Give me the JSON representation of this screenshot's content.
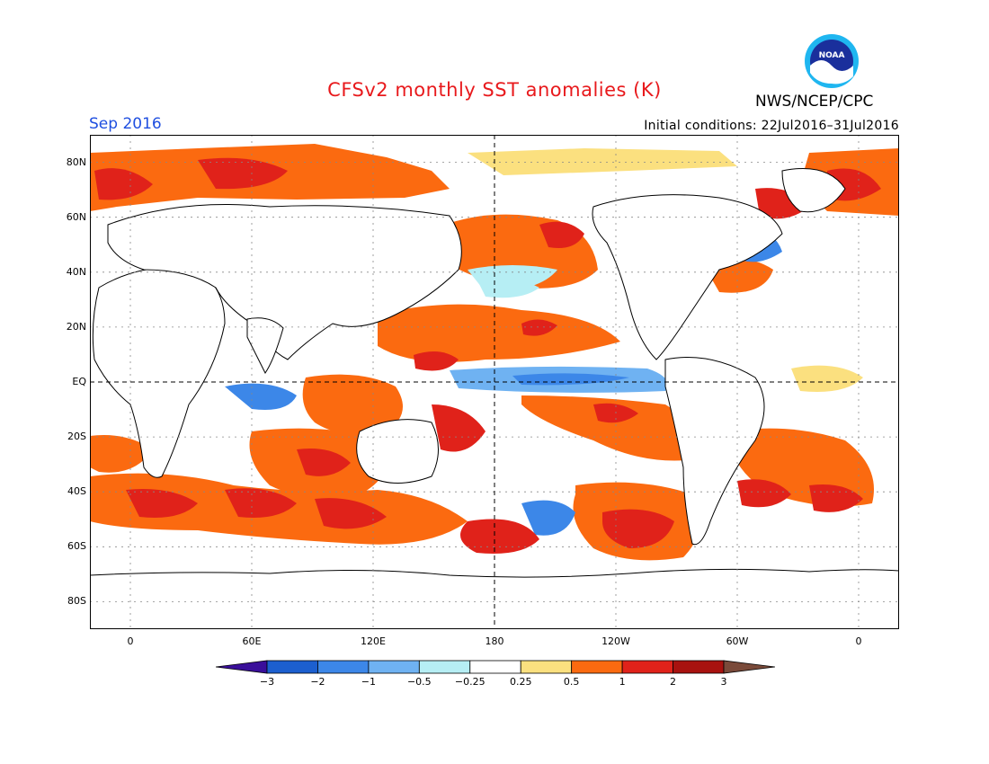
{
  "title": "CFSv2 monthly SST anomalies (K)",
  "org": "NWS/NCEP/CPC",
  "logo_text": "NOAA",
  "month": "Sep 2016",
  "initial_conditions": "Initial conditions: 22Jul2016–31Jul2016",
  "map": {
    "lat_labels": [
      {
        "label": "80N",
        "lat": 80
      },
      {
        "label": "60N",
        "lat": 60
      },
      {
        "label": "40N",
        "lat": 40
      },
      {
        "label": "20N",
        "lat": 20
      },
      {
        "label": "EQ",
        "lat": 0
      },
      {
        "label": "20S",
        "lat": -20
      },
      {
        "label": "40S",
        "lat": -40
      },
      {
        "label": "60S",
        "lat": -60
      },
      {
        "label": "80S",
        "lat": -80
      }
    ],
    "lon_labels": [
      {
        "label": "0",
        "lon": 0
      },
      {
        "label": "60E",
        "lon": 60
      },
      {
        "label": "120E",
        "lon": 120
      },
      {
        "label": "180",
        "lon": 180
      },
      {
        "label": "120W",
        "lon": 240
      },
      {
        "label": "60W",
        "lon": 300
      },
      {
        "label": "0",
        "lon": 360
      }
    ],
    "lon_range": [
      -20,
      380
    ],
    "lat_range": [
      -90,
      90
    ],
    "land_color": "#ffffff",
    "ocean_neutral_color": "#ffffff"
  },
  "colorbar": {
    "labels": [
      "−3",
      "−2",
      "−1",
      "−0.5",
      "−0.25",
      "0.25",
      "0.5",
      "1",
      "2",
      "3"
    ],
    "colors": [
      "#3a0f9a",
      "#1c5fcf",
      "#3c87e8",
      "#6fb2f2",
      "#b6eef4",
      "#ffffff",
      "#fbe07f",
      "#fb6a10",
      "#e0221a",
      "#a8120f",
      "#7a4a3a"
    ]
  }
}
